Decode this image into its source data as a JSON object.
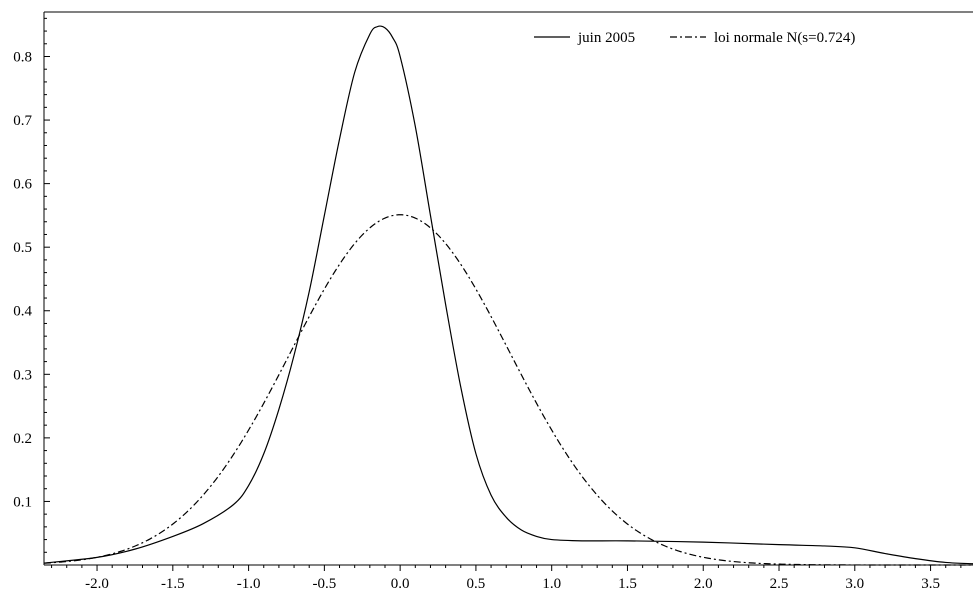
{
  "chart_data": {
    "type": "line",
    "title": "",
    "xlabel": "",
    "ylabel": "",
    "xlim": [
      -2.35,
      3.78
    ],
    "ylim": [
      0,
      0.87
    ],
    "x_ticks": [
      -2.0,
      -1.5,
      -1.0,
      -0.5,
      0.0,
      0.5,
      1.0,
      1.5,
      2.0,
      2.5,
      3.0,
      3.5
    ],
    "x_tick_labels": [
      "-2.0",
      "-1.5",
      "-1.0",
      "-0.5",
      "0.0",
      "0.5",
      "1.0",
      "1.5",
      "2.0",
      "2.5",
      "3.0",
      "3.5"
    ],
    "y_ticks": [
      0.1,
      0.2,
      0.3,
      0.4,
      0.5,
      0.6,
      0.7,
      0.8
    ],
    "y_tick_labels": [
      "0.1",
      "0.2",
      "0.3",
      "0.4",
      "0.5",
      "0.6",
      "0.7",
      "0.8"
    ],
    "legend_position": "top-right",
    "grid": false,
    "series": [
      {
        "name": "juin 2005",
        "style": "solid",
        "color": "#000000",
        "x": [
          -2.35,
          -2.0,
          -1.75,
          -1.5,
          -1.3,
          -1.1,
          -1.0,
          -0.9,
          -0.8,
          -0.7,
          -0.6,
          -0.5,
          -0.4,
          -0.3,
          -0.2,
          -0.15,
          -0.1,
          -0.05,
          0.0,
          0.1,
          0.2,
          0.3,
          0.4,
          0.5,
          0.6,
          0.7,
          0.8,
          0.9,
          1.0,
          1.2,
          1.5,
          2.0,
          2.5,
          2.8,
          3.0,
          3.2,
          3.4,
          3.6,
          3.78
        ],
        "y": [
          0.003,
          0.012,
          0.025,
          0.045,
          0.065,
          0.095,
          0.125,
          0.175,
          0.245,
          0.33,
          0.43,
          0.55,
          0.67,
          0.775,
          0.835,
          0.847,
          0.845,
          0.83,
          0.8,
          0.69,
          0.55,
          0.41,
          0.28,
          0.175,
          0.11,
          0.075,
          0.055,
          0.045,
          0.04,
          0.038,
          0.038,
          0.036,
          0.032,
          0.03,
          0.027,
          0.018,
          0.01,
          0.004,
          0.002
        ]
      },
      {
        "name": "loi normale N(s=0.724)",
        "style": "dashdot",
        "color": "#000000",
        "mean": 0.0,
        "sd": 0.724
      }
    ]
  }
}
